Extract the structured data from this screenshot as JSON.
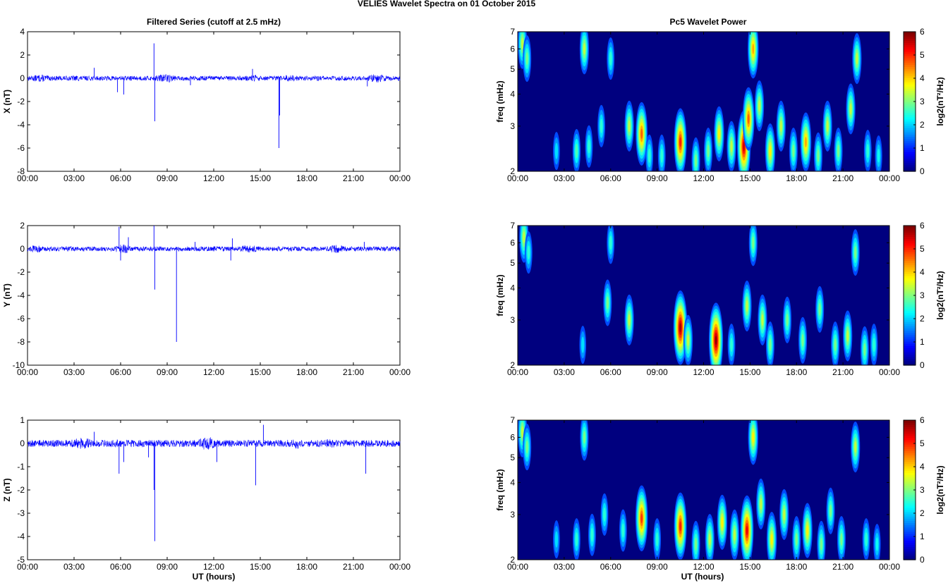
{
  "figure": {
    "title": "VELIES Wavelet Spectra on 01 October   2015",
    "left_title": "Filtered Series (cutoff at 2.5 mHz)",
    "right_title": "Pc5 Wavelet Power",
    "xlabel": "UT (hours)",
    "freq_label": "freq (mHz)",
    "colorbar_label": "log2(nT²/Hz)"
  },
  "colors": {
    "trace": "#0000ff",
    "background": "#00007f",
    "colormap": "jet"
  },
  "chart_data": [
    {
      "type": "line",
      "panel": "x-series",
      "ylabel": "X (nT)",
      "xlim": [
        0,
        24
      ],
      "ylim": [
        -8,
        4
      ],
      "xticks": [
        "00:00",
        "03:00",
        "06:00",
        "09:00",
        "12:00",
        "15:00",
        "18:00",
        "21:00",
        "00:00"
      ],
      "yticks": [
        -8,
        -6,
        -4,
        -2,
        0,
        2,
        4
      ],
      "noise_amplitude": 0.2,
      "spikes": [
        {
          "t": 4.3,
          "v": 0.9
        },
        {
          "t": 5.8,
          "v": -1.2
        },
        {
          "t": 6.2,
          "v": -1.4
        },
        {
          "t": 8.15,
          "v": 3.0
        },
        {
          "t": 8.2,
          "v": -3.7
        },
        {
          "t": 10.5,
          "v": -0.6
        },
        {
          "t": 14.5,
          "v": 0.8
        },
        {
          "t": 16.2,
          "v": -6.0
        },
        {
          "t": 16.25,
          "v": -3.2
        },
        {
          "t": 21.9,
          "v": -0.7
        }
      ]
    },
    {
      "type": "heatmap",
      "panel": "x-power",
      "ylabel": "freq (mHz)",
      "xlim": [
        0,
        24
      ],
      "ylim": [
        2,
        7
      ],
      "yscale": "log",
      "xticks": [
        "00:00",
        "03:00",
        "06:00",
        "09:00",
        "12:00",
        "15:00",
        "18:00",
        "21:00",
        "00:00"
      ],
      "yticks": [
        2,
        3,
        4,
        5,
        6,
        7
      ],
      "clim": [
        0,
        6
      ],
      "cticks": [
        0,
        1,
        2,
        3,
        4,
        5,
        6
      ],
      "blobs": [
        {
          "t": 0.3,
          "f": 6.3,
          "p": 3.0
        },
        {
          "t": 0.6,
          "f": 5.5,
          "p": 2.5
        },
        {
          "t": 2.5,
          "f": 2.4,
          "p": 1.5
        },
        {
          "t": 3.8,
          "f": 2.4,
          "p": 2.2
        },
        {
          "t": 4.3,
          "f": 6.0,
          "p": 3.0
        },
        {
          "t": 4.6,
          "f": 2.5,
          "p": 2.0
        },
        {
          "t": 5.4,
          "f": 3.0,
          "p": 2.0
        },
        {
          "t": 6.0,
          "f": 5.5,
          "p": 2.0
        },
        {
          "t": 7.2,
          "f": 3.0,
          "p": 3.0
        },
        {
          "t": 8.0,
          "f": 2.8,
          "p": 4.5
        },
        {
          "t": 8.5,
          "f": 2.3,
          "p": 2.0
        },
        {
          "t": 9.3,
          "f": 2.3,
          "p": 2.0
        },
        {
          "t": 10.5,
          "f": 2.6,
          "p": 5.0
        },
        {
          "t": 11.5,
          "f": 2.2,
          "p": 2.5
        },
        {
          "t": 12.3,
          "f": 2.4,
          "p": 2.5
        },
        {
          "t": 13.0,
          "f": 2.8,
          "p": 3.5
        },
        {
          "t": 13.8,
          "f": 2.5,
          "p": 3.0
        },
        {
          "t": 14.6,
          "f": 2.5,
          "p": 5.5
        },
        {
          "t": 14.9,
          "f": 3.2,
          "p": 4.5
        },
        {
          "t": 15.2,
          "f": 6.0,
          "p": 4.0
        },
        {
          "t": 15.6,
          "f": 3.6,
          "p": 3.0
        },
        {
          "t": 16.3,
          "f": 2.4,
          "p": 3.5
        },
        {
          "t": 17.0,
          "f": 3.0,
          "p": 3.0
        },
        {
          "t": 17.8,
          "f": 2.4,
          "p": 2.5
        },
        {
          "t": 18.6,
          "f": 2.6,
          "p": 4.0
        },
        {
          "t": 19.4,
          "f": 2.3,
          "p": 2.5
        },
        {
          "t": 20.0,
          "f": 3.0,
          "p": 3.0
        },
        {
          "t": 20.7,
          "f": 2.4,
          "p": 2.5
        },
        {
          "t": 21.5,
          "f": 3.5,
          "p": 3.0
        },
        {
          "t": 21.9,
          "f": 5.5,
          "p": 3.0
        },
        {
          "t": 22.6,
          "f": 2.4,
          "p": 2.0
        },
        {
          "t": 23.3,
          "f": 2.3,
          "p": 1.8
        }
      ]
    },
    {
      "type": "line",
      "panel": "y-series",
      "ylabel": "Y (nT)",
      "xlim": [
        0,
        24
      ],
      "ylim": [
        -10,
        2
      ],
      "xticks": [
        "00:00",
        "03:00",
        "06:00",
        "09:00",
        "12:00",
        "15:00",
        "18:00",
        "21:00",
        "00:00"
      ],
      "yticks": [
        -10,
        -8,
        -6,
        -4,
        -2,
        0,
        2
      ],
      "noise_amplitude": 0.2,
      "spikes": [
        {
          "t": 5.9,
          "v": 1.9
        },
        {
          "t": 6.0,
          "v": -1.0
        },
        {
          "t": 6.5,
          "v": 1.0
        },
        {
          "t": 8.15,
          "v": 2.0
        },
        {
          "t": 8.2,
          "v": -3.5
        },
        {
          "t": 9.6,
          "v": -8.0
        },
        {
          "t": 10.8,
          "v": 0.6
        },
        {
          "t": 13.2,
          "v": 0.9
        },
        {
          "t": 13.1,
          "v": -1.0
        },
        {
          "t": 21.7,
          "v": 0.6
        }
      ]
    },
    {
      "type": "heatmap",
      "panel": "y-power",
      "ylabel": "freq (mHz)",
      "xlim": [
        0,
        24
      ],
      "ylim": [
        2,
        7
      ],
      "yscale": "log",
      "xticks": [
        "00:00",
        "03:00",
        "06:00",
        "09:00",
        "12:00",
        "15:00",
        "18:00",
        "21:00",
        "00:00"
      ],
      "yticks": [
        2,
        3,
        4,
        5,
        6,
        7
      ],
      "clim": [
        0,
        6
      ],
      "cticks": [
        0,
        1,
        2,
        3,
        4,
        5,
        6
      ],
      "blobs": [
        {
          "t": 0.4,
          "f": 6.3,
          "p": 3.0
        },
        {
          "t": 0.7,
          "f": 5.5,
          "p": 2.0
        },
        {
          "t": 4.2,
          "f": 2.4,
          "p": 1.5
        },
        {
          "t": 5.8,
          "f": 3.5,
          "p": 2.5
        },
        {
          "t": 6.0,
          "f": 6.0,
          "p": 2.0
        },
        {
          "t": 7.2,
          "f": 3.0,
          "p": 3.0
        },
        {
          "t": 10.5,
          "f": 2.8,
          "p": 5.8
        },
        {
          "t": 11.0,
          "f": 2.5,
          "p": 3.0
        },
        {
          "t": 12.8,
          "f": 2.5,
          "p": 5.9
        },
        {
          "t": 13.8,
          "f": 2.4,
          "p": 2.0
        },
        {
          "t": 14.8,
          "f": 3.4,
          "p": 3.0
        },
        {
          "t": 15.2,
          "f": 6.0,
          "p": 2.5
        },
        {
          "t": 15.8,
          "f": 3.0,
          "p": 3.0
        },
        {
          "t": 16.3,
          "f": 2.4,
          "p": 2.5
        },
        {
          "t": 17.4,
          "f": 3.0,
          "p": 2.5
        },
        {
          "t": 18.4,
          "f": 2.5,
          "p": 2.5
        },
        {
          "t": 19.5,
          "f": 3.3,
          "p": 2.5
        },
        {
          "t": 20.5,
          "f": 2.4,
          "p": 2.5
        },
        {
          "t": 21.3,
          "f": 2.6,
          "p": 3.0
        },
        {
          "t": 21.8,
          "f": 5.5,
          "p": 2.5
        },
        {
          "t": 22.4,
          "f": 2.3,
          "p": 2.5
        },
        {
          "t": 23.0,
          "f": 2.4,
          "p": 2.0
        }
      ]
    },
    {
      "type": "line",
      "panel": "z-series",
      "ylabel": "Z (nT)",
      "xlim": [
        0,
        24
      ],
      "ylim": [
        -5,
        1
      ],
      "xticks": [
        "00:00",
        "03:00",
        "06:00",
        "09:00",
        "12:00",
        "15:00",
        "18:00",
        "21:00",
        "00:00"
      ],
      "yticks": [
        -5,
        -4,
        -3,
        -2,
        -1,
        0,
        1
      ],
      "noise_amplitude": 0.15,
      "spikes": [
        {
          "t": 4.3,
          "v": 0.5
        },
        {
          "t": 5.9,
          "v": -1.3
        },
        {
          "t": 6.2,
          "v": -0.8
        },
        {
          "t": 7.8,
          "v": -0.6
        },
        {
          "t": 8.2,
          "v": -4.2
        },
        {
          "t": 8.15,
          "v": -2.0
        },
        {
          "t": 12.2,
          "v": -0.8
        },
        {
          "t": 14.7,
          "v": -1.8
        },
        {
          "t": 15.2,
          "v": 0.8
        },
        {
          "t": 21.8,
          "v": -1.3
        }
      ]
    },
    {
      "type": "heatmap",
      "panel": "z-power",
      "ylabel": "freq (mHz)",
      "xlim": [
        0,
        24
      ],
      "ylim": [
        2,
        7
      ],
      "yscale": "log",
      "xticks": [
        "00:00",
        "03:00",
        "06:00",
        "09:00",
        "12:00",
        "15:00",
        "18:00",
        "21:00",
        "00:00"
      ],
      "yticks": [
        2,
        3,
        4,
        5,
        6,
        7
      ],
      "clim": [
        0,
        6
      ],
      "cticks": [
        0,
        1,
        2,
        3,
        4,
        5,
        6
      ],
      "blobs": [
        {
          "t": 0.3,
          "f": 6.3,
          "p": 3.0
        },
        {
          "t": 0.6,
          "f": 5.5,
          "p": 2.5
        },
        {
          "t": 2.5,
          "f": 2.4,
          "p": 1.5
        },
        {
          "t": 3.8,
          "f": 2.4,
          "p": 2.0
        },
        {
          "t": 4.3,
          "f": 6.0,
          "p": 2.5
        },
        {
          "t": 4.8,
          "f": 2.5,
          "p": 2.0
        },
        {
          "t": 5.6,
          "f": 3.0,
          "p": 2.0
        },
        {
          "t": 6.8,
          "f": 2.6,
          "p": 2.0
        },
        {
          "t": 8.0,
          "f": 2.9,
          "p": 4.8
        },
        {
          "t": 9.0,
          "f": 2.4,
          "p": 2.0
        },
        {
          "t": 10.5,
          "f": 2.7,
          "p": 5.0
        },
        {
          "t": 11.5,
          "f": 2.3,
          "p": 2.5
        },
        {
          "t": 12.4,
          "f": 2.4,
          "p": 3.0
        },
        {
          "t": 13.2,
          "f": 2.8,
          "p": 3.5
        },
        {
          "t": 14.0,
          "f": 2.5,
          "p": 3.0
        },
        {
          "t": 14.8,
          "f": 2.6,
          "p": 5.3
        },
        {
          "t": 15.2,
          "f": 6.0,
          "p": 3.5
        },
        {
          "t": 15.7,
          "f": 3.3,
          "p": 3.0
        },
        {
          "t": 16.4,
          "f": 2.4,
          "p": 3.5
        },
        {
          "t": 17.2,
          "f": 3.0,
          "p": 3.0
        },
        {
          "t": 18.0,
          "f": 2.4,
          "p": 2.5
        },
        {
          "t": 18.7,
          "f": 2.6,
          "p": 3.5
        },
        {
          "t": 19.6,
          "f": 2.3,
          "p": 2.5
        },
        {
          "t": 20.2,
          "f": 3.1,
          "p": 2.5
        },
        {
          "t": 20.9,
          "f": 2.4,
          "p": 2.5
        },
        {
          "t": 21.8,
          "f": 5.5,
          "p": 3.0
        },
        {
          "t": 22.5,
          "f": 2.4,
          "p": 2.0
        },
        {
          "t": 23.2,
          "f": 2.3,
          "p": 1.8
        }
      ]
    }
  ]
}
